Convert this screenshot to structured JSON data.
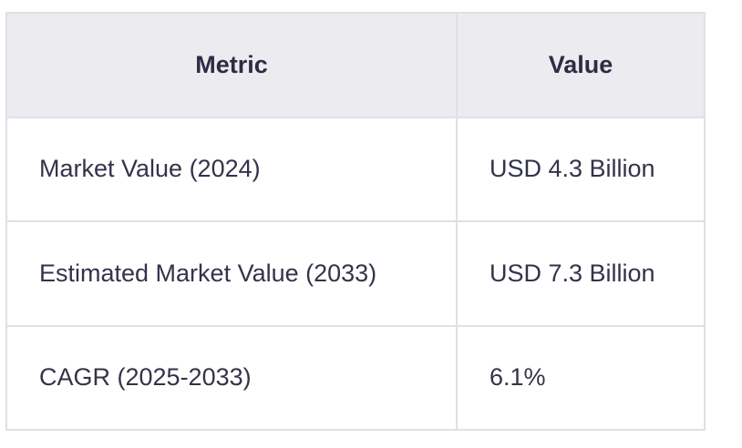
{
  "table": {
    "headers": [
      "Metric",
      "Value"
    ],
    "rows": [
      [
        "Market Value (2024)",
        "USD 4.3 Billion"
      ],
      [
        "Estimated Market Value (2033)",
        "USD 7.3 Billion"
      ],
      [
        "CAGR (2025-2033)",
        "6.1%"
      ]
    ]
  }
}
